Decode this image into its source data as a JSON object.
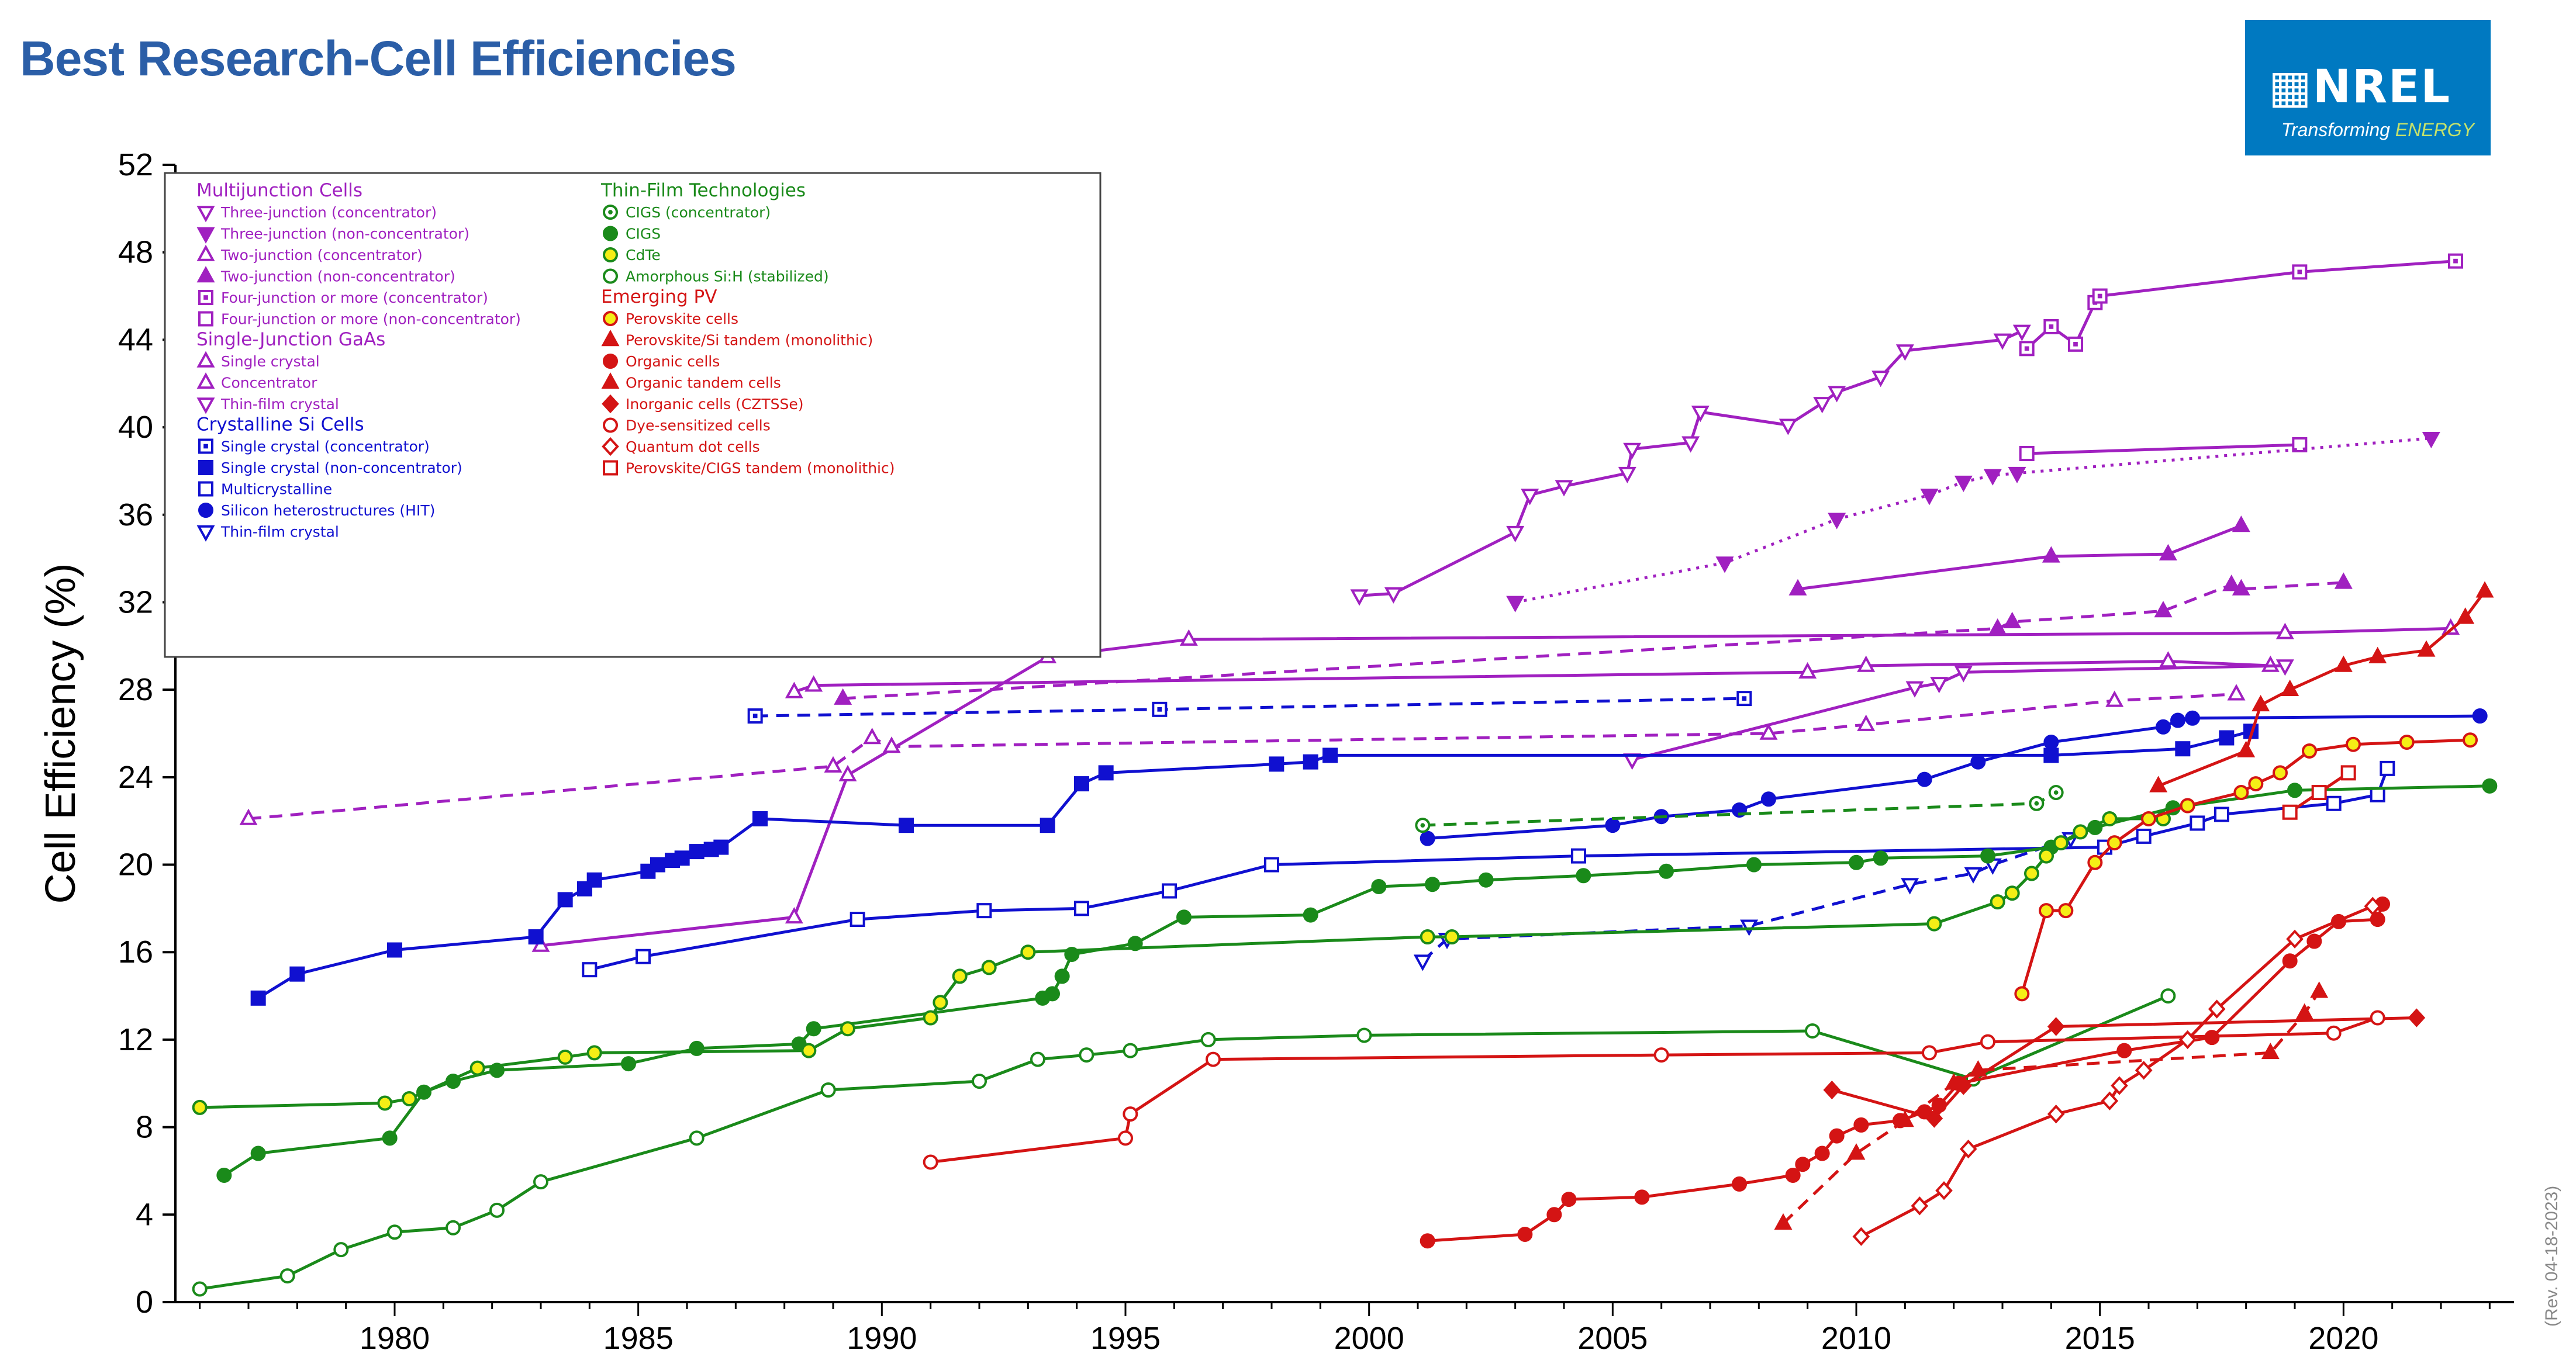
{
  "title": "Best Research-Cell Efficiencies",
  "logo": {
    "name": "NREL",
    "tagline_a": "Transforming ",
    "tagline_b": "ENERGY"
  },
  "revision": "(Rev. 04-18-2023)",
  "chart_data": {
    "type": "line",
    "title": "Best Research-Cell Efficiencies",
    "xlabel": "",
    "ylabel": "Cell Efficiency (%)",
    "xlim": [
      1975.5,
      2023.5
    ],
    "ylim": [
      0,
      52
    ],
    "xticks": [
      1980,
      1985,
      1990,
      1995,
      2000,
      2005,
      2010,
      2015,
      2020
    ],
    "yticks": [
      0,
      4,
      8,
      12,
      16,
      20,
      24,
      28,
      32,
      36,
      40,
      44,
      48,
      52
    ],
    "legend_groups": [
      {
        "label": "Multijunction Cells",
        "color": "#a020c0",
        "items": [
          {
            "label": "Three-junction (concentrator)",
            "marker": "tri-down-open"
          },
          {
            "label": "Three-junction (non-concentrator)",
            "marker": "tri-down"
          },
          {
            "label": "Two-junction (concentrator)",
            "marker": "tri-up-open"
          },
          {
            "label": "Two-junction (non-concentrator)",
            "marker": "tri-up"
          },
          {
            "label": "Four-junction or more (concentrator)",
            "marker": "square-dot"
          },
          {
            "label": "Four-junction or more (non-concentrator)",
            "marker": "square-open"
          }
        ]
      },
      {
        "label": "Single-Junction GaAs",
        "color": "#a020c0",
        "items": [
          {
            "label": "Single crystal",
            "marker": "tri-up-open"
          },
          {
            "label": "Concentrator",
            "marker": "tri-up-open"
          },
          {
            "label": "Thin-film crystal",
            "marker": "tri-down-open"
          }
        ]
      },
      {
        "label": "Crystalline Si Cells",
        "color": "#1010d0",
        "items": [
          {
            "label": "Single crystal (concentrator)",
            "marker": "square-dot"
          },
          {
            "label": "Single crystal (non-concentrator)",
            "marker": "square"
          },
          {
            "label": "Multicrystalline",
            "marker": "square-open"
          },
          {
            "label": "Silicon heterostructures (HIT)",
            "marker": "circle"
          },
          {
            "label": "Thin-film crystal",
            "marker": "tri-down-open"
          }
        ]
      },
      {
        "label": "Thin-Film Technologies",
        "color": "#1a8a1a",
        "items": [
          {
            "label": "CIGS (concentrator)",
            "marker": "circle-dot"
          },
          {
            "label": "CIGS",
            "marker": "circle"
          },
          {
            "label": "CdTe",
            "marker": "circle-yellow"
          },
          {
            "label": "Amorphous Si:H (stabilized)",
            "marker": "circle-open"
          }
        ]
      },
      {
        "label": "Emerging PV",
        "color": "#d41414",
        "items": [
          {
            "label": "Perovskite cells",
            "marker": "circle-yellow"
          },
          {
            "label": "Perovskite/Si tandem (monolithic)",
            "marker": "tri-up"
          },
          {
            "label": "Organic cells",
            "marker": "circle"
          },
          {
            "label": "Organic tandem cells",
            "marker": "tri-up"
          },
          {
            "label": "Inorganic cells (CZTSSe)",
            "marker": "diamond"
          },
          {
            "label": "Dye-sensitized cells",
            "marker": "circle-open"
          },
          {
            "label": "Quantum dot cells",
            "marker": "diamond-open"
          },
          {
            "label": "Perovskite/CIGS tandem (monolithic)",
            "marker": "square-open"
          }
        ]
      }
    ],
    "series": [
      {
        "name": "Four-junction or more (concentrator)",
        "color": "#a020c0",
        "marker": "square-dot",
        "dash": "",
        "x": [
          2013.5,
          2014,
          2014.5,
          2014.9,
          2015,
          2019.1,
          2022.3
        ],
        "y": [
          43.6,
          44.6,
          43.8,
          45.7,
          46.0,
          47.1,
          47.6
        ]
      },
      {
        "name": "Three-junction (concentrator)",
        "color": "#a020c0",
        "marker": "tri-down-open",
        "dash": "",
        "x": [
          1999.8,
          2000.5,
          2003,
          2003.3,
          2004,
          2005.3,
          2005.4,
          2006.6,
          2006.8,
          2008.6,
          2009.3,
          2009.6,
          2010.5,
          2011,
          2013,
          2013.4
        ],
        "y": [
          32.3,
          32.4,
          35.2,
          36.9,
          37.3,
          37.9,
          39.0,
          39.3,
          40.7,
          40.1,
          41.1,
          41.6,
          42.3,
          43.5,
          44.0,
          44.4
        ]
      },
      {
        "name": "Four-junction or more (non-concentrator)",
        "color": "#a020c0",
        "marker": "square-open",
        "dash": "",
        "x": [
          2013.5,
          2019.1
        ],
        "y": [
          38.8,
          39.2
        ]
      },
      {
        "name": "Three-junction (non-concentrator)",
        "color": "#a020c0",
        "marker": "tri-down",
        "dash": "dot",
        "x": [
          2003,
          2007.3,
          2009.6,
          2011.5,
          2012.2,
          2012.8,
          2013.3,
          2021.8
        ],
        "y": [
          32.0,
          33.8,
          35.8,
          36.9,
          37.5,
          37.8,
          37.9,
          39.5
        ]
      },
      {
        "name": "Two-junction (non-concentrator)",
        "color": "#a020c0",
        "marker": "tri-up",
        "dash": "",
        "x": [
          2008.8,
          2014,
          2016.4,
          2017.9
        ],
        "y": [
          32.6,
          34.1,
          34.2,
          35.5
        ]
      },
      {
        "name": "Two-junction (concentrator)",
        "color": "#a020c0",
        "marker": "tri-up-open",
        "dash": "",
        "x": [
          1983,
          1988.2,
          1989.3,
          1993.4,
          1996.3,
          2018.8,
          2022.2
        ],
        "y": [
          16.3,
          17.6,
          24.1,
          29.5,
          30.3,
          30.6,
          30.8
        ]
      },
      {
        "name": "Two-junction (non-concentrator) dashed",
        "color": "#a020c0",
        "marker": "tri-up",
        "dash": "dash",
        "x": [
          1989.2,
          2012.9,
          2013.2,
          2016.3,
          2017.7,
          2017.9,
          2020
        ],
        "y": [
          27.6,
          30.8,
          31.1,
          31.6,
          32.8,
          32.6,
          32.9
        ]
      },
      {
        "name": "Single crystal GaAs",
        "color": "#a020c0",
        "marker": "tri-up-open",
        "dash": "",
        "x": [
          1988.2,
          1988.6,
          2009,
          2010.2,
          2016.4,
          2018.5
        ],
        "y": [
          27.9,
          28.2,
          28.8,
          29.1,
          29.3,
          29.1
        ]
      },
      {
        "name": "GaAs Concentrator",
        "color": "#a020c0",
        "marker": "tri-up-open",
        "dash": "dash",
        "x": [
          1977,
          1989,
          1989.8,
          1990.2,
          2008.2,
          2010.2,
          2015.3,
          2017.8
        ],
        "y": [
          22.1,
          24.5,
          25.8,
          25.4,
          26.0,
          26.4,
          27.5,
          27.8
        ]
      },
      {
        "name": "Thin-film crystal GaAs",
        "color": "#a020c0",
        "marker": "tri-down-open",
        "dash": "",
        "x": [
          2005.4,
          2011.2,
          2011.7,
          2012.2,
          2018.8
        ],
        "y": [
          24.8,
          28.1,
          28.3,
          28.8,
          29.1
        ]
      },
      {
        "name": "Si single crystal (concentrator)",
        "color": "#1010d0",
        "marker": "square-dot",
        "dash": "dash",
        "x": [
          1987.4,
          1995.7,
          2007.7
        ],
        "y": [
          26.8,
          27.1,
          27.6
        ]
      },
      {
        "name": "Si single crystal (non-concentrator)",
        "color": "#1010d0",
        "marker": "square",
        "dash": "",
        "x": [
          1977.2,
          1978,
          1980,
          1982.9,
          1983.5,
          1983.9,
          1984.1,
          1985.2,
          1985.4,
          1985.7,
          1985.9,
          1986.2,
          1986.5,
          1986.7,
          1987.5,
          1990.5,
          1993.4,
          1994.1,
          1994.6,
          1998.1,
          1998.8,
          1999.2,
          2014,
          2016.7,
          2017.6,
          2018.1
        ],
        "y": [
          13.9,
          15.0,
          16.1,
          16.7,
          18.4,
          18.9,
          19.3,
          19.7,
          20.0,
          20.2,
          20.3,
          20.6,
          20.7,
          20.8,
          22.1,
          21.8,
          21.8,
          23.7,
          24.2,
          24.6,
          24.7,
          25.0,
          25.0,
          25.3,
          25.8,
          26.1
        ]
      },
      {
        "name": "Silicon heterostructures (HIT)",
        "color": "#1010d0",
        "marker": "circle",
        "dash": "",
        "x": [
          2001.2,
          2005,
          2006,
          2007.6,
          2008.2,
          2011.4,
          2012.5,
          2014,
          2016.3,
          2016.6,
          2016.9,
          2022.8
        ],
        "y": [
          21.2,
          21.8,
          22.2,
          22.5,
          23.0,
          23.9,
          24.7,
          25.6,
          26.3,
          26.6,
          26.7,
          26.8
        ]
      },
      {
        "name": "Multicrystalline Si",
        "color": "#1010d0",
        "marker": "square-open",
        "dash": "",
        "x": [
          1984,
          1985.1,
          1989.5,
          1992.1,
          1994.1,
          1995.9,
          1998,
          2004.3,
          2015.1,
          2015.9,
          2017,
          2017.5,
          2019.8,
          2020.7,
          2020.9
        ],
        "y": [
          15.2,
          15.8,
          17.5,
          17.9,
          18.0,
          18.8,
          20.0,
          20.4,
          20.8,
          21.3,
          21.9,
          22.3,
          22.8,
          23.2,
          24.4
        ]
      },
      {
        "name": "Si thin-film crystal",
        "color": "#1010d0",
        "marker": "tri-down-open",
        "dash": "dash",
        "x": [
          2001.1,
          2001.6,
          2007.8,
          2011.1,
          2012.4,
          2012.8,
          2014.4
        ],
        "y": [
          15.6,
          16.6,
          17.2,
          19.1,
          19.6,
          20.0,
          21.2
        ]
      },
      {
        "name": "CIGS (concentrator)",
        "color": "#1a8a1a",
        "marker": "circle-dot",
        "dash": "dash",
        "x": [
          2001.1,
          2013.7,
          2014.1
        ],
        "y": [
          21.8,
          22.8,
          23.3
        ]
      },
      {
        "name": "CIGS",
        "color": "#1a8a1a",
        "marker": "circle",
        "dash": "",
        "x": [
          1976.5,
          1977.2,
          1979.9,
          1980.6,
          1981.2,
          1982.1,
          1984.8,
          1986.2,
          1988.3,
          1988.6,
          1993.3,
          1993.5,
          1993.7,
          1993.9,
          1995.2,
          1996.2,
          1998.8,
          2000.2,
          2001.3,
          2002.4,
          2004.4,
          2006.1,
          2007.9,
          2010,
          2010.5,
          2012.7,
          2014,
          2014.9,
          2016.5,
          2019,
          2023
        ],
        "y": [
          5.8,
          6.8,
          7.5,
          9.6,
          10.1,
          10.6,
          10.9,
          11.6,
          11.8,
          12.5,
          13.9,
          14.1,
          14.9,
          15.9,
          16.4,
          17.6,
          17.7,
          19.0,
          19.1,
          19.3,
          19.5,
          19.7,
          20.0,
          20.1,
          20.3,
          20.4,
          20.8,
          21.7,
          22.6,
          23.4,
          23.6
        ]
      },
      {
        "name": "CdTe",
        "color": "#1a8a1a",
        "marker": "circle-yellow",
        "dash": "",
        "x": [
          1976,
          1979.8,
          1980.3,
          1981.7,
          1983.5,
          1984.1,
          1988.5,
          1989.3,
          1991,
          1991.2,
          1991.6,
          1992.2,
          1993,
          2001.2,
          2001.7,
          2011.6,
          2012.9,
          2013.2,
          2013.6,
          2013.9,
          2014.2,
          2014.6,
          2015.2,
          2016.3
        ],
        "y": [
          8.9,
          9.1,
          9.3,
          10.7,
          11.2,
          11.4,
          11.5,
          12.5,
          13.0,
          13.7,
          14.9,
          15.3,
          16.0,
          16.7,
          16.7,
          17.3,
          18.3,
          18.7,
          19.6,
          20.4,
          21.0,
          21.5,
          22.1,
          22.1
        ]
      },
      {
        "name": "Amorphous Si:H (stabilized)",
        "color": "#1a8a1a",
        "marker": "circle-open",
        "dash": "",
        "x": [
          1976,
          1977.8,
          1978.9,
          1980,
          1981.2,
          1982.1,
          1983,
          1986.2,
          1988.9,
          1992,
          1993.2,
          1994.2,
          1995.1,
          1996.7,
          1999.9,
          2009.1,
          2012.4,
          2016.4
        ],
        "y": [
          0.6,
          1.2,
          2.4,
          3.2,
          3.4,
          4.2,
          5.5,
          7.5,
          9.7,
          10.1,
          11.1,
          11.3,
          11.5,
          12.0,
          12.2,
          12.4,
          10.2,
          14.0
        ]
      },
      {
        "name": "Perovskite cells",
        "color": "#d41414",
        "marker": "circle-yellow",
        "dash": "",
        "x": [
          2013.4,
          2013.9,
          2014.3,
          2014.9,
          2015.3,
          2016,
          2016.8,
          2017.9,
          2018.2,
          2018.7,
          2019.3,
          2020.2,
          2021.3,
          2022.6
        ],
        "y": [
          14.1,
          17.9,
          17.9,
          20.1,
          21.0,
          22.1,
          22.7,
          23.3,
          23.7,
          24.2,
          25.2,
          25.5,
          25.6,
          25.7
        ]
      },
      {
        "name": "Perovskite/Si tandem (monolithic)",
        "color": "#d41414",
        "marker": "tri-up",
        "dash": "",
        "x": [
          2016.2,
          2018,
          2018.3,
          2018.9,
          2020,
          2020.7,
          2021.7,
          2022.5,
          2022.9
        ],
        "y": [
          23.6,
          25.2,
          27.3,
          28.0,
          29.1,
          29.5,
          29.8,
          31.3,
          32.5
        ]
      },
      {
        "name": "Organic cells",
        "color": "#d41414",
        "marker": "circle",
        "dash": "",
        "x": [
          2001.2,
          2003.2,
          2003.8,
          2004.1,
          2005.6,
          2007.6,
          2008.7,
          2008.9,
          2009.3,
          2009.6,
          2010.1,
          2010.9,
          2011.4,
          2011.7,
          2012.1,
          2015.5,
          2017.3,
          2018.9,
          2019.4,
          2019.9,
          2020.7,
          2020.8
        ],
        "y": [
          2.8,
          3.1,
          4.0,
          4.7,
          4.8,
          5.4,
          5.8,
          6.3,
          6.8,
          7.6,
          8.1,
          8.3,
          8.7,
          9.0,
          10.0,
          11.5,
          12.1,
          15.6,
          16.5,
          17.4,
          17.5,
          18.2
        ]
      },
      {
        "name": "Organic tandem cells",
        "color": "#d41414",
        "marker": "tri-up",
        "dash": "dash",
        "x": [
          2008.5,
          2010,
          2011,
          2012,
          2012.5,
          2018.5,
          2019.2,
          2019.5
        ],
        "y": [
          3.6,
          6.8,
          8.3,
          10.0,
          10.6,
          11.4,
          13.2,
          14.2
        ]
      },
      {
        "name": "Inorganic cells (CZTSSe)",
        "color": "#d41414",
        "marker": "diamond",
        "dash": "",
        "x": [
          2009.5,
          2011.6,
          2012.2,
          2014.1,
          2021.5
        ],
        "y": [
          9.7,
          8.4,
          9.9,
          12.6,
          13.0
        ]
      },
      {
        "name": "Dye-sensitized cells",
        "color": "#d41414",
        "marker": "circle-open",
        "dash": "",
        "x": [
          1991,
          1995,
          1995.1,
          1996.8,
          2006,
          2011.5,
          2012.7,
          2019.8,
          2020.7
        ],
        "y": [
          6.4,
          7.5,
          8.6,
          11.1,
          11.3,
          11.4,
          11.9,
          12.3,
          13.0
        ]
      },
      {
        "name": "Quantum dot cells",
        "color": "#d41414",
        "marker": "diamond-open",
        "dash": "",
        "x": [
          2010.1,
          2011.3,
          2011.8,
          2012.3,
          2014.1,
          2015.2,
          2015.4,
          2015.9,
          2016.8,
          2017.4,
          2019,
          2020.6
        ],
        "y": [
          3.0,
          4.4,
          5.1,
          7.0,
          8.6,
          9.2,
          9.9,
          10.6,
          12.0,
          13.4,
          16.6,
          18.1
        ]
      },
      {
        "name": "Perovskite/CIGS tandem (monolithic)",
        "color": "#d41414",
        "marker": "square-open",
        "dash": "",
        "x": [
          2018.9,
          2019.5,
          2020.1
        ],
        "y": [
          22.4,
          23.3,
          24.2
        ]
      }
    ]
  }
}
